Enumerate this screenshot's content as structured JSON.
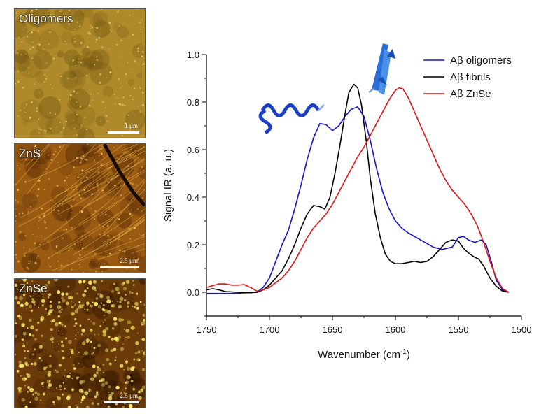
{
  "panels": [
    {
      "label": "Oligomers",
      "scale": "1 µm",
      "bar_fraction": 0.24,
      "base": "#b08a2a",
      "dark": "#6e5412",
      "light": "#e8d27a"
    },
    {
      "label": "ZnS",
      "scale": "2.5 µm",
      "bar_fraction": 0.3,
      "base": "#9a5a12",
      "dark": "#4a2205",
      "light": "#f0c850"
    },
    {
      "label": "ZnSe",
      "scale": "2.5 µm",
      "bar_fraction": 0.27,
      "base": "#6a3a08",
      "dark": "#2a1202",
      "light": "#fff06a"
    }
  ],
  "chart_data": {
    "type": "line",
    "xlabel": "Wavenumber (cm",
    "xlabel_sup": "-1",
    "xlabel_end": ")",
    "ylabel": "Signal IR (a. u.)",
    "xlim": [
      1750,
      1500
    ],
    "ylim": [
      -0.1,
      1.0
    ],
    "x_ticks": [
      1750,
      1700,
      1650,
      1600,
      1550,
      1500
    ],
    "y_ticks": [
      "0.0",
      "0.2",
      "0.4",
      "0.6",
      "0.8",
      "1.0"
    ],
    "legend_position": "top-right",
    "series": [
      {
        "name": "Aβ oligomers",
        "color": "#1414d2",
        "points": [
          [
            1750,
            -0.005
          ],
          [
            1740,
            -0.005
          ],
          [
            1730,
            -0.005
          ],
          [
            1720,
            -0.003
          ],
          [
            1710,
            0.0
          ],
          [
            1705,
            0.02
          ],
          [
            1700,
            0.06
          ],
          [
            1695,
            0.13
          ],
          [
            1690,
            0.2
          ],
          [
            1685,
            0.26
          ],
          [
            1680,
            0.35
          ],
          [
            1675,
            0.45
          ],
          [
            1670,
            0.56
          ],
          [
            1665,
            0.65
          ],
          [
            1660,
            0.71
          ],
          [
            1655,
            0.705
          ],
          [
            1650,
            0.68
          ],
          [
            1645,
            0.7
          ],
          [
            1640,
            0.74
          ],
          [
            1635,
            0.77
          ],
          [
            1630,
            0.78
          ],
          [
            1625,
            0.74
          ],
          [
            1620,
            0.64
          ],
          [
            1615,
            0.52
          ],
          [
            1610,
            0.42
          ],
          [
            1605,
            0.35
          ],
          [
            1600,
            0.3
          ],
          [
            1595,
            0.27
          ],
          [
            1590,
            0.25
          ],
          [
            1580,
            0.22
          ],
          [
            1570,
            0.19
          ],
          [
            1563,
            0.18
          ],
          [
            1555,
            0.19
          ],
          [
            1550,
            0.23
          ],
          [
            1546,
            0.235
          ],
          [
            1542,
            0.22
          ],
          [
            1537,
            0.21
          ],
          [
            1532,
            0.22
          ],
          [
            1528,
            0.2
          ],
          [
            1524,
            0.13
          ],
          [
            1520,
            0.05
          ],
          [
            1515,
            0.01
          ],
          [
            1510,
            0.0
          ]
        ]
      },
      {
        "name": "Aβ fibrils",
        "color": "#000000",
        "points": [
          [
            1750,
            0.01
          ],
          [
            1745,
            0.015
          ],
          [
            1740,
            0.01
          ],
          [
            1735,
            0.003
          ],
          [
            1725,
            0.0
          ],
          [
            1715,
            -0.002
          ],
          [
            1710,
            0.0
          ],
          [
            1705,
            0.01
          ],
          [
            1700,
            0.03
          ],
          [
            1695,
            0.06
          ],
          [
            1690,
            0.09
          ],
          [
            1685,
            0.14
          ],
          [
            1680,
            0.2
          ],
          [
            1675,
            0.27
          ],
          [
            1670,
            0.33
          ],
          [
            1665,
            0.365
          ],
          [
            1660,
            0.36
          ],
          [
            1656,
            0.35
          ],
          [
            1652,
            0.4
          ],
          [
            1648,
            0.5
          ],
          [
            1644,
            0.62
          ],
          [
            1640,
            0.75
          ],
          [
            1637,
            0.84
          ],
          [
            1633,
            0.875
          ],
          [
            1630,
            0.86
          ],
          [
            1627,
            0.79
          ],
          [
            1623,
            0.63
          ],
          [
            1620,
            0.48
          ],
          [
            1616,
            0.33
          ],
          [
            1612,
            0.23
          ],
          [
            1608,
            0.16
          ],
          [
            1604,
            0.13
          ],
          [
            1600,
            0.12
          ],
          [
            1595,
            0.12
          ],
          [
            1590,
            0.125
          ],
          [
            1585,
            0.13
          ],
          [
            1580,
            0.125
          ],
          [
            1575,
            0.13
          ],
          [
            1570,
            0.15
          ],
          [
            1565,
            0.18
          ],
          [
            1560,
            0.21
          ],
          [
            1555,
            0.22
          ],
          [
            1550,
            0.215
          ],
          [
            1546,
            0.185
          ],
          [
            1542,
            0.165
          ],
          [
            1538,
            0.15
          ],
          [
            1534,
            0.14
          ],
          [
            1530,
            0.11
          ],
          [
            1525,
            0.06
          ],
          [
            1520,
            0.025
          ],
          [
            1515,
            0.005
          ],
          [
            1510,
            0.0
          ]
        ]
      },
      {
        "name": "Aβ ZnSe",
        "color": "#e01212",
        "points": [
          [
            1750,
            0.02
          ],
          [
            1745,
            0.028
          ],
          [
            1740,
            0.035
          ],
          [
            1735,
            0.035
          ],
          [
            1730,
            0.03
          ],
          [
            1725,
            0.03
          ],
          [
            1720,
            0.032
          ],
          [
            1715,
            0.02
          ],
          [
            1710,
            0.005
          ],
          [
            1705,
            0.01
          ],
          [
            1700,
            0.02
          ],
          [
            1695,
            0.04
          ],
          [
            1690,
            0.06
          ],
          [
            1685,
            0.09
          ],
          [
            1680,
            0.13
          ],
          [
            1675,
            0.18
          ],
          [
            1670,
            0.23
          ],
          [
            1665,
            0.27
          ],
          [
            1660,
            0.3
          ],
          [
            1655,
            0.33
          ],
          [
            1650,
            0.37
          ],
          [
            1645,
            0.42
          ],
          [
            1640,
            0.47
          ],
          [
            1635,
            0.52
          ],
          [
            1630,
            0.57
          ],
          [
            1625,
            0.61
          ],
          [
            1620,
            0.66
          ],
          [
            1615,
            0.71
          ],
          [
            1610,
            0.76
          ],
          [
            1605,
            0.81
          ],
          [
            1600,
            0.85
          ],
          [
            1597,
            0.86
          ],
          [
            1594,
            0.855
          ],
          [
            1590,
            0.82
          ],
          [
            1585,
            0.76
          ],
          [
            1580,
            0.7
          ],
          [
            1575,
            0.64
          ],
          [
            1570,
            0.58
          ],
          [
            1565,
            0.52
          ],
          [
            1560,
            0.47
          ],
          [
            1555,
            0.43
          ],
          [
            1550,
            0.4
          ],
          [
            1545,
            0.37
          ],
          [
            1540,
            0.33
          ],
          [
            1535,
            0.28
          ],
          [
            1530,
            0.21
          ],
          [
            1525,
            0.13
          ],
          [
            1520,
            0.06
          ],
          [
            1515,
            0.015
          ],
          [
            1510,
            0.0
          ]
        ]
      }
    ]
  }
}
